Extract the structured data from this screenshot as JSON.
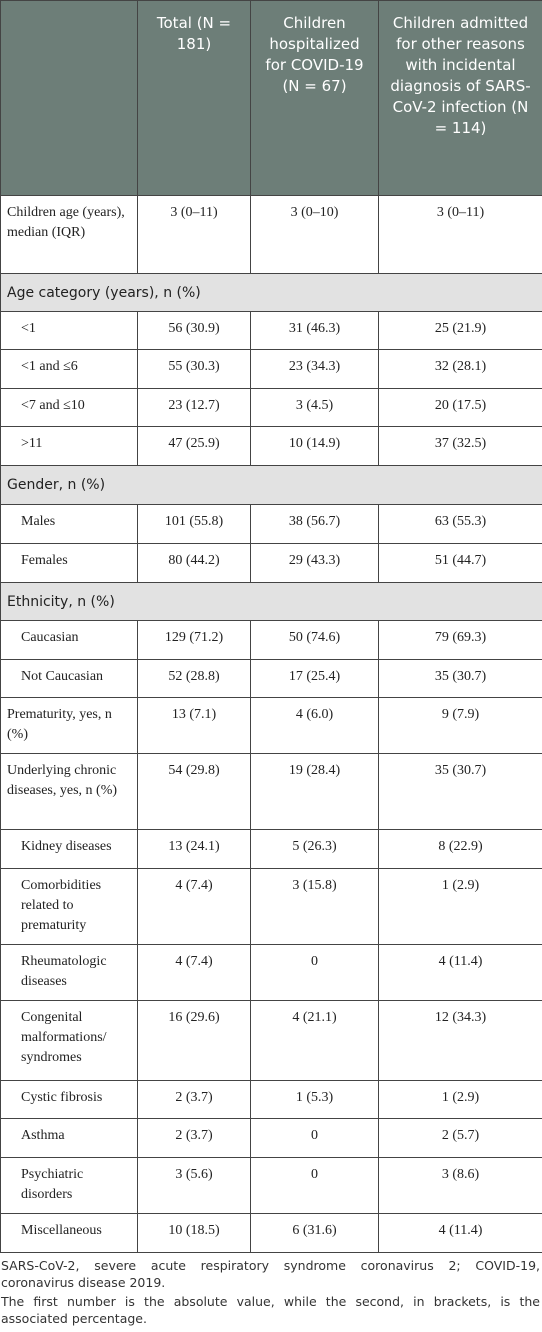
{
  "table": {
    "header": [
      "Total (N = 181)",
      "Children hospitalized for COVID-19 (N = 67)",
      "Children admitted for other reasons with incidental diagnosis of SARS-CoV-2 infection (N = 114)"
    ],
    "rows": [
      [
        "Children age (years), median (IQR)",
        "3 (0–11)",
        "3 (0–10)",
        "3 (0–11)"
      ],
      [
        "Age category (years), n (%)"
      ],
      [
        "<1",
        "56 (30.9)",
        "31 (46.3)",
        "25 (21.9)"
      ],
      [
        "<1 and ≤6",
        "55 (30.3)",
        "23 (34.3)",
        "32 (28.1)"
      ],
      [
        "<7 and ≤10",
        "23 (12.7)",
        "3 (4.5)",
        "20 (17.5)"
      ],
      [
        ">11",
        "47 (25.9)",
        "10 (14.9)",
        "37 (32.5)"
      ],
      [
        "Gender, n (%)"
      ],
      [
        "Males",
        "101 (55.8)",
        "38 (56.7)",
        "63 (55.3)"
      ],
      [
        "Females",
        "80 (44.2)",
        "29 (43.3)",
        "51 (44.7)"
      ],
      [
        "Ethnicity, n (%)"
      ],
      [
        "Caucasian",
        "129 (71.2)",
        "50 (74.6)",
        "79 (69.3)"
      ],
      [
        "Not Caucasian",
        "52 (28.8)",
        "17 (25.4)",
        "35 (30.7)"
      ],
      [
        "Prematurity, yes, n (%)",
        "13 (7.1)",
        "4 (6.0)",
        "9 (7.9)"
      ],
      [
        "Underlying chronic diseases, yes, n (%)",
        "54 (29.8)",
        "19 (28.4)",
        "35 (30.7)"
      ],
      [
        "Kidney diseases",
        "13 (24.1)",
        "5 (26.3)",
        "8 (22.9)"
      ],
      [
        "Comorbidities related to prematurity",
        "4 (7.4)",
        "3 (15.8)",
        "1 (2.9)"
      ],
      [
        "Rheumatologic diseases",
        "4 (7.4)",
        "0",
        "4 (11.4)"
      ],
      [
        "Congenital malformations/ syndromes",
        "16 (29.6)",
        "4 (21.1)",
        "12 (34.3)"
      ],
      [
        "Cystic fibrosis",
        "2 (3.7)",
        "1 (5.3)",
        "1 (2.9)"
      ],
      [
        "Asthma",
        "2 (3.7)",
        "0",
        "2 (5.7)"
      ],
      [
        "Psychiatric disorders",
        "3 (5.6)",
        "0",
        "3 (8.6)"
      ],
      [
        "Miscellaneous",
        "10 (18.5)",
        "6 (31.6)",
        "4 (11.4)"
      ]
    ]
  },
  "footnotes": [
    "SARS-CoV-2, severe acute respiratory syndrome coronavirus 2; COVID-19, coronavirus disease 2019.",
    "The first number is the absolute value, while the second, in brackets, is the associated percentage."
  ]
}
